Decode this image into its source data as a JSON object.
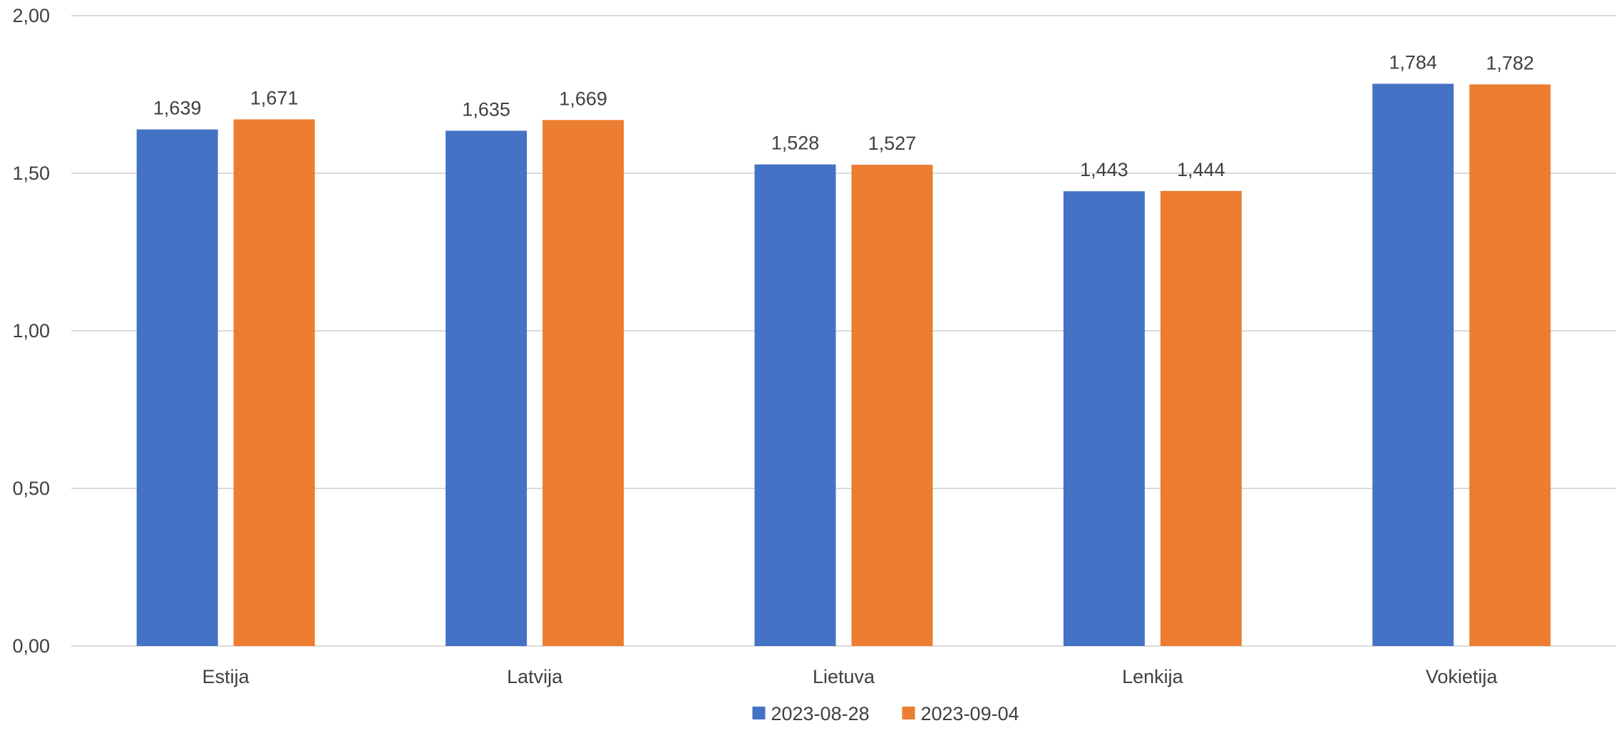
{
  "chart_data": {
    "type": "bar",
    "title": "",
    "xlabel": "",
    "ylabel": "",
    "categories": [
      "Estija",
      "Latvija",
      "Lietuva",
      "Lenkija",
      "Vokietija"
    ],
    "series": [
      {
        "name": "2023-08-28",
        "color": "#4472C4",
        "values": [
          1.639,
          1.635,
          1.528,
          1.443,
          1.784
        ],
        "labels": [
          "1,639",
          "1,635",
          "1,528",
          "1,443",
          "1,784"
        ]
      },
      {
        "name": "2023-09-04",
        "color": "#ED7D31",
        "values": [
          1.671,
          1.669,
          1.527,
          1.444,
          1.782
        ],
        "labels": [
          "1,671",
          "1,669",
          "1,527",
          "1,444",
          "1,782"
        ]
      }
    ],
    "ylim": [
      0,
      2
    ],
    "yticks": [
      0,
      0.5,
      1,
      1.5,
      2
    ],
    "ytick_labels": [
      "0,00",
      "0,50",
      "1,00",
      "1,50",
      "2,00"
    ],
    "grid": true,
    "gridline_color": "#d9d9d9",
    "legend_position": "bottom"
  }
}
